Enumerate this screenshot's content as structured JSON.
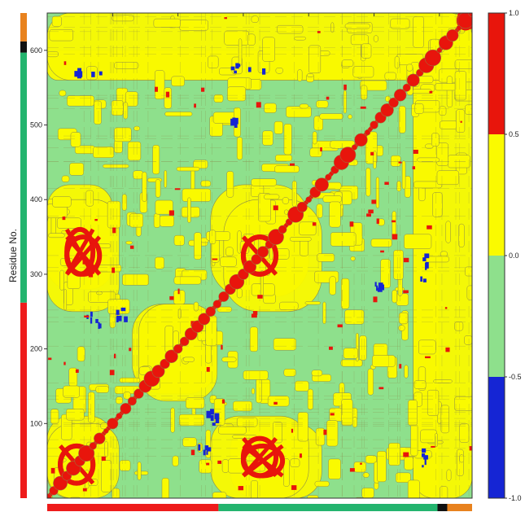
{
  "chart_data": {
    "type": "heatmap",
    "title": "",
    "xlabel": "",
    "ylabel": "Residue No.",
    "xlim": [
      0,
      650
    ],
    "ylim": [
      0,
      650
    ],
    "y_ticks": [
      100,
      200,
      300,
      400,
      500,
      600
    ],
    "y_tick_labels": [
      "100",
      "200",
      "300",
      "400",
      "500",
      "600"
    ],
    "colorbar": {
      "ticks": [
        1.0,
        0.5,
        0.0,
        -0.5,
        -1.0
      ],
      "tick_labels": [
        "1.0",
        "0.5",
        "0.0",
        "-0.5",
        "-1.0"
      ],
      "bins": [
        {
          "from": 0.5,
          "to": 1.0,
          "color": "#e8150c"
        },
        {
          "from": 0.0,
          "to": 0.5,
          "color": "#fafa00"
        },
        {
          "from": -0.5,
          "to": 0.0,
          "color": "#8ee08c"
        },
        {
          "from": -1.0,
          "to": -0.5,
          "color": "#1525d4"
        }
      ]
    },
    "domain_bar": [
      {
        "from": 0,
        "to": 262,
        "color": "#ee1b1b"
      },
      {
        "from": 262,
        "to": 597,
        "color": "#23b46e"
      },
      {
        "from": 597,
        "to": 612,
        "color": "#111111"
      },
      {
        "from": 612,
        "to": 650,
        "color": "#e8821e"
      }
    ],
    "contour_line_color": "#8a8a4a",
    "plot_background": "#8ee08c",
    "red_regions": [
      {
        "x": [
          20,
          70
        ],
        "y": [
          20,
          70
        ]
      },
      {
        "x": [
          300,
          350
        ],
        "y": [
          300,
          350
        ]
      },
      {
        "x": [
          30,
          70
        ],
        "y": [
          300,
          360
        ]
      },
      {
        "x": [
          300,
          350
        ],
        "y": [
          30,
          80
        ]
      },
      {
        "x": [
          630,
          650
        ],
        "y": [
          630,
          650
        ]
      }
    ],
    "yellow_regions": [
      {
        "x": [
          0,
          100
        ],
        "y": [
          0,
          110
        ]
      },
      {
        "x": [
          0,
          100
        ],
        "y": [
          280,
          420
        ]
      },
      {
        "x": [
          250,
          400
        ],
        "y": [
          0,
          110
        ]
      },
      {
        "x": [
          250,
          400
        ],
        "y": [
          270,
          420
        ]
      },
      {
        "x": [
          130,
          260
        ],
        "y": [
          140,
          260
        ]
      },
      {
        "x": [
          0,
          650
        ],
        "y": [
          560,
          600
        ]
      },
      {
        "x": [
          560,
          650
        ],
        "y": [
          0,
          650
        ]
      }
    ],
    "blue_regions": [
      {
        "x": [
          40,
          80
        ],
        "y": [
          570,
          580
        ]
      },
      {
        "x": [
          280,
          330
        ],
        "y": [
          570,
          585
        ]
      },
      {
        "x": [
          230,
          250
        ],
        "y": [
          60,
          80
        ]
      },
      {
        "x": [
          100,
          120
        ],
        "y": [
          240,
          260
        ]
      },
      {
        "x": [
          500,
          510
        ],
        "y": [
          280,
          290
        ]
      }
    ]
  }
}
